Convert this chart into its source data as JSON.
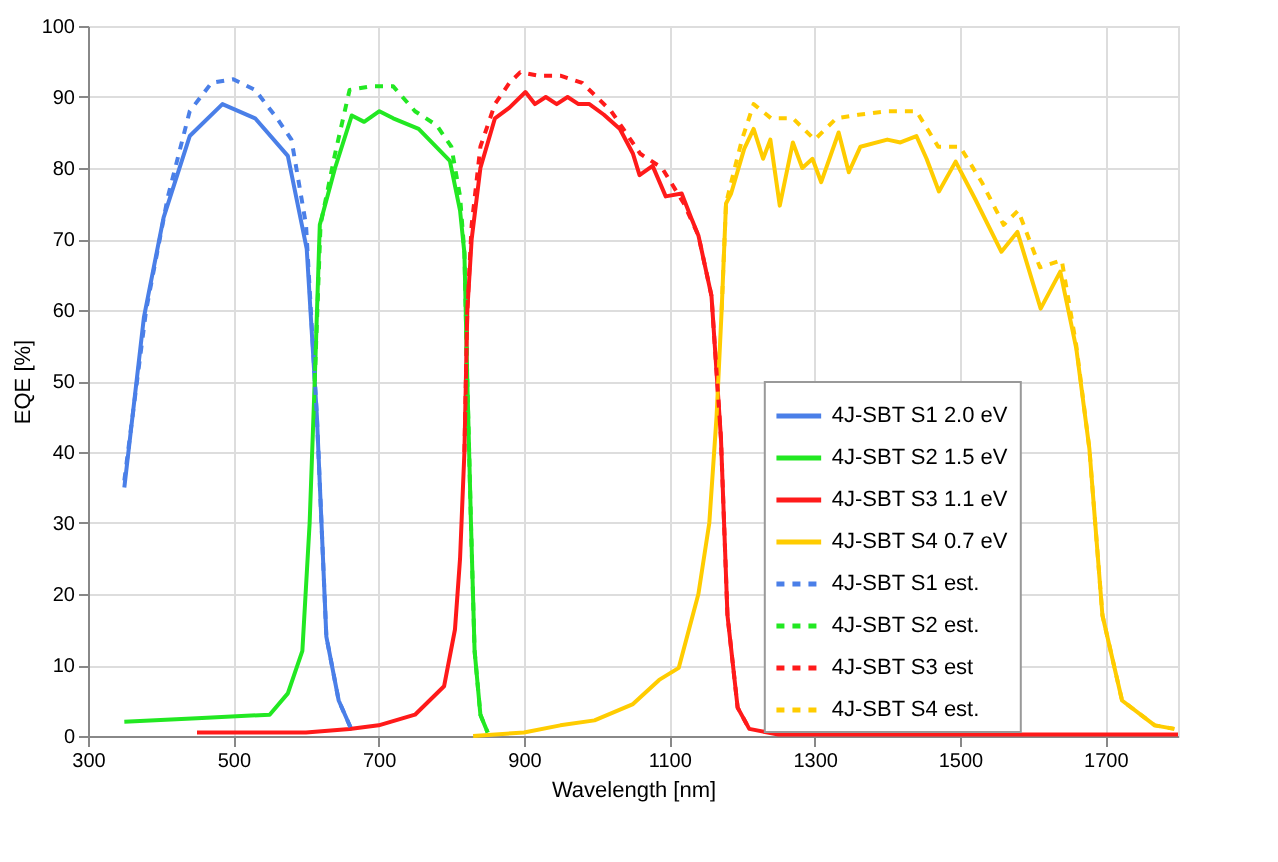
{
  "chart_data": {
    "type": "line",
    "xlabel": "Wavelength [nm]",
    "ylabel": "EQE [%]",
    "xlim": [
      300,
      1800
    ],
    "xticks": [
      300,
      500,
      700,
      900,
      1100,
      1300,
      1500,
      1700
    ],
    "ylim": [
      0,
      100
    ],
    "yticks": [
      0,
      10,
      20,
      30,
      40,
      50,
      60,
      70,
      80,
      90,
      100
    ],
    "grid": true,
    "legend": "center right",
    "series": [
      {
        "name": "4J-SBT S1 2.0 eV",
        "color": "#4a7fe8",
        "line_style": "solid",
        "x": [
          350,
          377,
          404,
          440,
          485,
          530,
          575,
          601,
          615,
          628,
          645,
          663
        ],
        "values": [
          35,
          59,
          73,
          84.5,
          89,
          87,
          81.7,
          68.6,
          45,
          14,
          5,
          0.8
        ]
      },
      {
        "name": "4J-SBT S2 1.5 eV",
        "color": "#22e822",
        "line_style": "solid",
        "x": [
          350,
          450,
          550,
          575,
          595,
          605,
          612,
          619,
          640,
          663,
          680,
          701,
          720,
          755,
          798,
          812,
          818,
          822,
          827,
          832,
          840,
          850
        ],
        "values": [
          2,
          2.5,
          3,
          6,
          12,
          30,
          50,
          72,
          80,
          87.4,
          86.5,
          88,
          87,
          85.5,
          81,
          74,
          68,
          50,
          30,
          12,
          3,
          0.5
        ]
      },
      {
        "name": "4J-SBT S3 1.1 eV",
        "color": "#ff1a1a",
        "line_style": "solid",
        "x": [
          450,
          600,
          660,
          700,
          750,
          790,
          805,
          812,
          818,
          822,
          828,
          840,
          860,
          880,
          902,
          915,
          930,
          945,
          960,
          975,
          990,
          1010,
          1032,
          1050,
          1059,
          1077,
          1095,
          1117,
          1130,
          1140,
          1158,
          1171,
          1180,
          1194,
          1210,
          1250,
          1800
        ],
        "values": [
          0.5,
          0.5,
          1,
          1.5,
          3,
          7,
          15,
          25,
          40,
          60,
          70,
          80,
          87,
          88.5,
          90.7,
          89,
          90,
          89,
          90,
          89,
          89,
          87.5,
          85.5,
          82,
          79,
          80.3,
          76,
          76.4,
          73,
          70.5,
          62,
          42,
          17,
          4,
          1,
          0.2,
          0.2
        ]
      },
      {
        "name": "4J-SBT S4 0.7 eV",
        "color": "#ffcc00",
        "line_style": "solid",
        "x": [
          830,
          900,
          950,
          997,
          1050,
          1086,
          1113,
          1140,
          1155,
          1165,
          1172,
          1178,
          1185,
          1203,
          1216,
          1229,
          1239,
          1252,
          1270,
          1283,
          1297,
          1309,
          1333,
          1347,
          1363,
          1400,
          1418,
          1440,
          1454,
          1471,
          1494,
          1521,
          1557,
          1579,
          1611,
          1638,
          1660,
          1678,
          1696,
          1723,
          1768,
          1795
        ],
        "values": [
          0,
          0.5,
          1.5,
          2.2,
          4.5,
          7.9,
          9.6,
          20,
          30,
          45,
          60,
          75,
          76.4,
          82.7,
          85.5,
          81.3,
          84,
          74.7,
          83.6,
          80,
          81.3,
          78,
          85,
          79.4,
          83,
          84,
          83.6,
          84.5,
          81.3,
          76.7,
          80.9,
          75.6,
          68.2,
          71,
          60.2,
          65.4,
          54.6,
          40.5,
          17,
          5,
          1.5,
          1
        ]
      },
      {
        "name": "4J-SBT S1 est.",
        "color": "#4a7fe8",
        "line_style": "dashed",
        "x": [
          350,
          380,
          410,
          440,
          470,
          500,
          530,
          560,
          580,
          600,
          615,
          628,
          645,
          663
        ],
        "values": [
          36,
          60,
          76,
          88,
          92,
          92.5,
          91,
          87,
          84,
          72,
          45,
          14,
          5,
          0.8
        ]
      },
      {
        "name": "4J-SBT S2 est.",
        "color": "#22e822",
        "line_style": "dashed",
        "x": [
          612,
          620,
          640,
          660,
          690,
          720,
          750,
          780,
          800,
          812,
          818,
          822,
          827,
          832,
          840,
          850
        ],
        "values": [
          50,
          72,
          82,
          91,
          91.5,
          91.5,
          88,
          86,
          83,
          76,
          68,
          50,
          30,
          12,
          3,
          0.5
        ]
      },
      {
        "name": "4J-SBT S3 est",
        "color": "#ff1a1a",
        "line_style": "dashed",
        "x": [
          818,
          822,
          828,
          840,
          860,
          880,
          895,
          920,
          950,
          980,
          1020,
          1040,
          1060,
          1090,
          1120,
          1140,
          1158,
          1171,
          1180,
          1194,
          1210
        ],
        "values": [
          40,
          60,
          72,
          83,
          89,
          92,
          93.5,
          93,
          93,
          92,
          88,
          85,
          82,
          80,
          75,
          70.5,
          62,
          42,
          17,
          4,
          1
        ]
      },
      {
        "name": "4J-SBT S4 est.",
        "color": "#ffcc00",
        "line_style": "dashed",
        "x": [
          1172,
          1178,
          1190,
          1200,
          1216,
          1240,
          1270,
          1300,
          1330,
          1360,
          1400,
          1440,
          1470,
          1500,
          1530,
          1560,
          1580,
          1610,
          1640,
          1660,
          1678,
          1696,
          1723,
          1768,
          1795
        ],
        "values": [
          60,
          75,
          80,
          84,
          89,
          87,
          87,
          84,
          87,
          87.5,
          88,
          88,
          83,
          83,
          78,
          72,
          74,
          66,
          67,
          55,
          40.5,
          17,
          5,
          1.5,
          1
        ]
      }
    ]
  }
}
